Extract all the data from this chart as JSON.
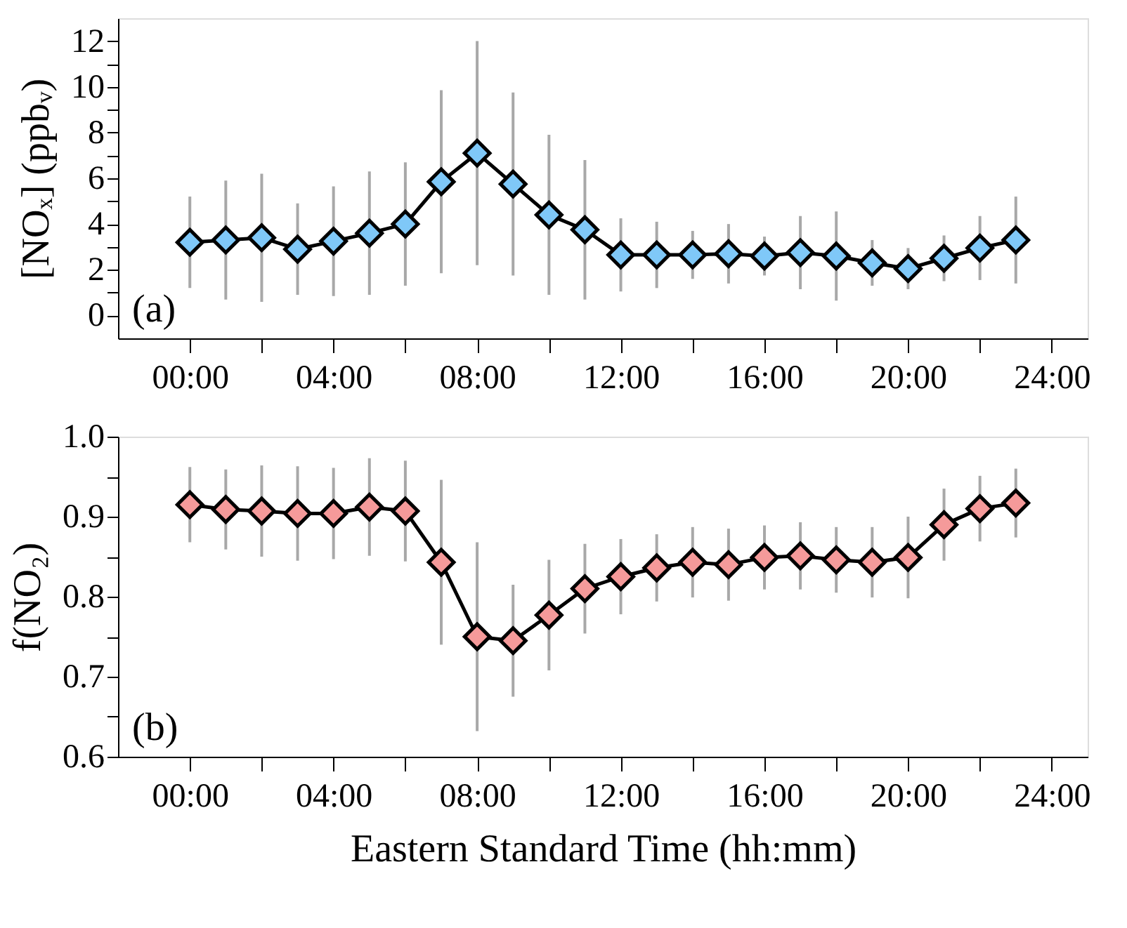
{
  "chart_data": [
    {
      "type": "line",
      "ylabel": "[NOₓ] (ppbᵥ)",
      "annotations": [
        "(a)"
      ],
      "marker": "diamond",
      "line_style": "solid",
      "grid": false,
      "x": [
        0,
        1,
        2,
        3,
        4,
        5,
        6,
        7,
        8,
        9,
        10,
        11,
        12,
        13,
        14,
        15,
        16,
        17,
        18,
        19,
        20,
        21,
        22,
        23
      ],
      "series": [
        {
          "color": "#7fc8f8",
          "values": [
            3.2,
            3.3,
            3.4,
            2.9,
            3.25,
            3.6,
            4.0,
            5.85,
            7.1,
            5.75,
            4.4,
            3.75,
            2.65,
            2.65,
            2.65,
            2.7,
            2.6,
            2.75,
            2.6,
            2.3,
            2.05,
            2.5,
            2.95,
            3.3
          ],
          "errors": [
            2.0,
            2.6,
            2.8,
            2.0,
            2.4,
            2.7,
            2.7,
            4.0,
            4.9,
            4.0,
            3.5,
            3.05,
            1.6,
            1.45,
            1.05,
            1.3,
            0.85,
            1.6,
            1.95,
            1.0,
            0.9,
            1.0,
            1.4,
            1.9
          ]
        }
      ],
      "xlim": [
        -2,
        25
      ],
      "xticks": [
        {
          "value": 0,
          "label": "00:00"
        },
        {
          "value": 2,
          "label": null
        },
        {
          "value": 4,
          "label": "04:00"
        },
        {
          "value": 6,
          "label": null
        },
        {
          "value": 8,
          "label": "08:00"
        },
        {
          "value": 10,
          "label": null
        },
        {
          "value": 12,
          "label": "12:00"
        },
        {
          "value": 14,
          "label": null
        },
        {
          "value": 16,
          "label": "16:00"
        },
        {
          "value": 18,
          "label": null
        },
        {
          "value": 20,
          "label": "20:00"
        },
        {
          "value": 22,
          "label": null
        },
        {
          "value": 24,
          "label": "24:00"
        }
      ],
      "ylim": [
        -1,
        13
      ],
      "yticks": [
        0,
        {
          "value": 1,
          "label": null
        },
        2,
        {
          "value": 3,
          "label": null
        },
        4,
        {
          "value": 5,
          "label": null
        },
        6,
        {
          "value": 7,
          "label": null
        },
        8,
        {
          "value": 9,
          "label": null
        },
        10,
        {
          "value": 11,
          "label": null
        },
        12
      ]
    },
    {
      "type": "line",
      "ylabel": "f(NO₂)",
      "xlabel": "Eastern Standard Time (hh:mm)",
      "annotations": [
        "(b)"
      ],
      "marker": "diamond",
      "line_style": "solid",
      "grid": false,
      "x": [
        0,
        1,
        2,
        3,
        4,
        5,
        6,
        7,
        8,
        9,
        10,
        11,
        12,
        13,
        14,
        15,
        16,
        17,
        18,
        19,
        20,
        21,
        22,
        23
      ],
      "series": [
        {
          "color": "#f59a9a",
          "values": [
            0.915,
            0.909,
            0.907,
            0.904,
            0.904,
            0.912,
            0.907,
            0.843,
            0.75,
            0.745,
            0.777,
            0.81,
            0.825,
            0.836,
            0.843,
            0.84,
            0.849,
            0.851,
            0.846,
            0.843,
            0.849,
            0.89,
            0.91,
            0.917
          ],
          "errors": [
            0.047,
            0.05,
            0.057,
            0.059,
            0.057,
            0.061,
            0.063,
            0.103,
            0.118,
            0.07,
            0.069,
            0.056,
            0.047,
            0.042,
            0.044,
            0.045,
            0.04,
            0.042,
            0.041,
            0.044,
            0.051,
            0.045,
            0.041,
            0.043
          ]
        }
      ],
      "xlim": [
        -2,
        25
      ],
      "xticks": [
        {
          "value": 0,
          "label": "00:00"
        },
        {
          "value": 2,
          "label": null
        },
        {
          "value": 4,
          "label": "04:00"
        },
        {
          "value": 6,
          "label": null
        },
        {
          "value": 8,
          "label": "08:00"
        },
        {
          "value": 10,
          "label": null
        },
        {
          "value": 12,
          "label": "12:00"
        },
        {
          "value": 14,
          "label": null
        },
        {
          "value": 16,
          "label": "16:00"
        },
        {
          "value": 18,
          "label": null
        },
        {
          "value": 20,
          "label": "20:00"
        },
        {
          "value": 22,
          "label": null
        },
        {
          "value": 24,
          "label": "24:00"
        }
      ],
      "ylim": [
        0.6,
        1.0
      ],
      "yticks": [
        {
          "value": 0.6,
          "label": "0.6"
        },
        {
          "value": 0.65,
          "label": null
        },
        {
          "value": 0.7,
          "label": "0.7"
        },
        {
          "value": 0.75,
          "label": null
        },
        {
          "value": 0.8,
          "label": "0.8"
        },
        {
          "value": 0.85,
          "label": null
        },
        {
          "value": 0.9,
          "label": "0.9"
        },
        {
          "value": 0.95,
          "label": null
        },
        {
          "value": 1.0,
          "label": "1.0"
        }
      ]
    }
  ]
}
